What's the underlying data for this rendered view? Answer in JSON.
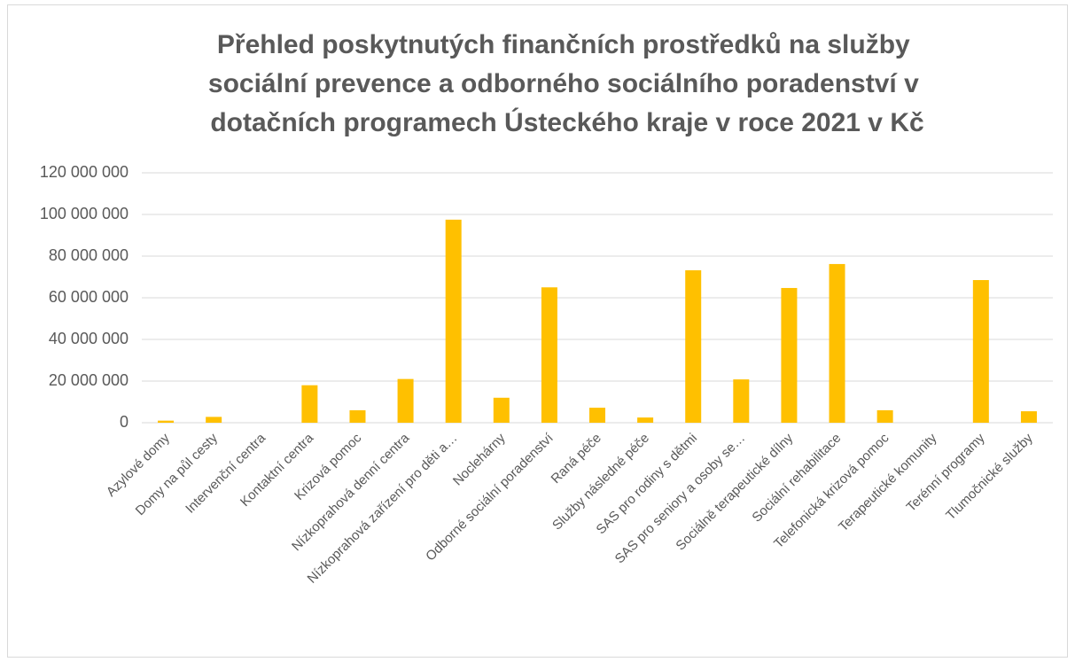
{
  "chart_data": {
    "type": "bar",
    "title": [
      "Přehled poskytnutých finančních prostředků na služby",
      "sociální prevence a odborného sociálního poradenství v",
      "dotačních programech Ústeckého kraje v roce 2021 v Kč"
    ],
    "categories": [
      "Azylové domy",
      "Domy na půl cesty",
      "Intervenční centra",
      "Kontaktní centra",
      "Krizová pomoc",
      "Nízkoprahová denní centra",
      "Nízkoprahová zařízení pro děti a…",
      "Noclehárny",
      "Odborné sociální poradenství",
      "Raná péče",
      "Služby následné péče",
      "SAS pro rodiny s dětmi",
      "SAS pro seniory a osoby se…",
      "Sociálně terapeutické dílny",
      "Sociální rehabilitace",
      "Telefonická krizová pomoc",
      "Terapeutické komunity",
      "Terénní programy",
      "Tlumočnické služby"
    ],
    "values": [
      1000000,
      2800000,
      0,
      18000000,
      6000000,
      21000000,
      97500000,
      12000000,
      65000000,
      7200000,
      2500000,
      73200000,
      20800000,
      64700000,
      76200000,
      6000000,
      0,
      68500000,
      5500000
    ],
    "color": "#ffc000",
    "ylim": [
      0,
      120000000
    ],
    "yticks": [
      0,
      {
        "value": 20000000,
        "label": "20 000 000"
      },
      {
        "value": 40000000,
        "label": "40 000 000"
      },
      {
        "value": 60000000,
        "label": "60 000 000"
      },
      {
        "value": 80000000,
        "label": "80 000 000"
      },
      {
        "value": 100000000,
        "label": "100 000 000"
      },
      {
        "value": 120000000,
        "label": "120 000 000"
      }
    ],
    "grid": true
  }
}
